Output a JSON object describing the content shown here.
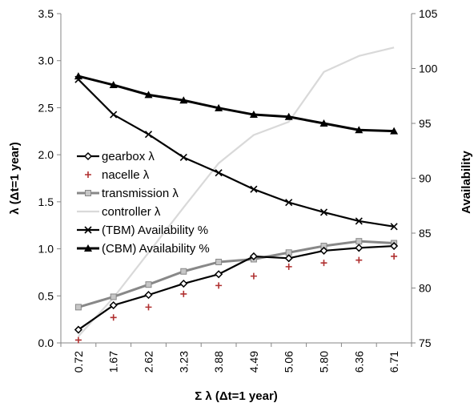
{
  "chart_data": {
    "type": "line",
    "categories": [
      "0.72",
      "1.67",
      "2.62",
      "3.23",
      "3.88",
      "4.49",
      "5.06",
      "5.80",
      "6.36",
      "6.71"
    ],
    "xlabel": "Σ λ (Δt=1 year)",
    "ylabel": "λ (Δt=1 year)",
    "y2label": "Availability",
    "ylim": [
      0,
      3.5
    ],
    "y2lim": [
      75,
      105
    ],
    "yticks": [
      "0.0",
      "0.5",
      "1.0",
      "1.5",
      "2.0",
      "2.5",
      "3.0",
      "3.5"
    ],
    "y2ticks": [
      "75",
      "80",
      "85",
      "90",
      "95",
      "100",
      "105"
    ],
    "grid": false,
    "legend_position": "left-middle",
    "series": [
      {
        "name": "gearbox λ",
        "axis": "left",
        "color": "#000000",
        "marker": "diamond-open",
        "values": [
          0.14,
          0.4,
          0.51,
          0.63,
          0.73,
          0.92,
          0.9,
          0.98,
          1.01,
          1.03
        ]
      },
      {
        "name": "nacelle λ",
        "axis": "left",
        "color": "#b03030",
        "marker": "plus",
        "values": [
          0.03,
          0.27,
          0.38,
          0.52,
          0.61,
          0.71,
          0.81,
          0.85,
          0.88,
          0.92
        ]
      },
      {
        "name": "transmission λ",
        "axis": "left",
        "color": "#888888",
        "marker": "square",
        "values": [
          0.38,
          0.49,
          0.62,
          0.76,
          0.86,
          0.89,
          0.96,
          1.03,
          1.08,
          1.06
        ]
      },
      {
        "name": "controller λ",
        "axis": "left",
        "color": "#d9d9d9",
        "marker": "none",
        "values": [
          0.07,
          0.48,
          0.96,
          1.44,
          1.91,
          2.21,
          2.35,
          2.88,
          3.05,
          3.14
        ]
      },
      {
        "name": "(TBM) Availability %",
        "axis": "right",
        "color": "#000000",
        "marker": "x",
        "values": [
          99.0,
          95.8,
          94.0,
          91.9,
          90.5,
          89.0,
          87.8,
          86.9,
          86.1,
          85.6
        ]
      },
      {
        "name": "(CBM) Availability %",
        "axis": "right",
        "color": "#000000",
        "marker": "triangle",
        "values": [
          99.3,
          98.5,
          97.6,
          97.1,
          96.4,
          95.8,
          95.6,
          95.0,
          94.4,
          94.3
        ]
      }
    ]
  }
}
